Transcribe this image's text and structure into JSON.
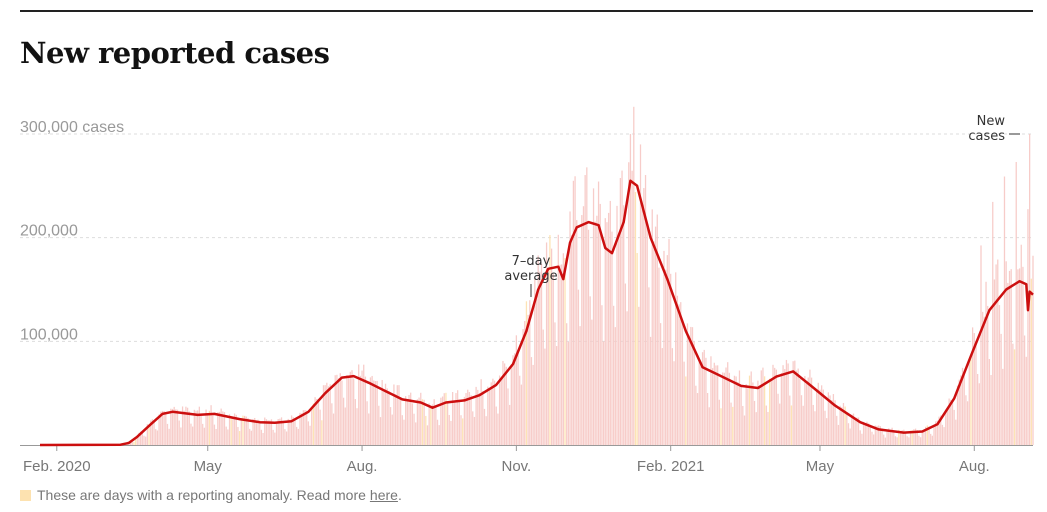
{
  "title": "New reported cases",
  "colors": {
    "bar": "#f7c9c6",
    "anomaly": "#fde2b0",
    "line": "#cc0f0f",
    "grid": "#dddddd",
    "axis_text": "#777777"
  },
  "chart_data": {
    "type": "bar",
    "title": "New reported cases",
    "xlabel": "",
    "ylabel": "",
    "ylim": [
      0,
      300000
    ],
    "x_range": [
      "2020-01-22",
      "2021-09-05"
    ],
    "y_ticks": [
      {
        "value": 300000,
        "label": "300,000 cases"
      },
      {
        "value": 200000,
        "label": "200,000"
      },
      {
        "value": 100000,
        "label": "100,000"
      }
    ],
    "x_ticks": [
      {
        "date": "2020-02-01",
        "label": "Feb. 2020"
      },
      {
        "date": "2020-05-01",
        "label": "May"
      },
      {
        "date": "2020-08-01",
        "label": "Aug."
      },
      {
        "date": "2020-11-01",
        "label": "Nov."
      },
      {
        "date": "2021-02-01",
        "label": "Feb. 2021"
      },
      {
        "date": "2021-05-01",
        "label": "May"
      },
      {
        "date": "2021-08-01",
        "label": "Aug."
      }
    ],
    "series": [
      {
        "name": "7-day average",
        "points": [
          [
            "2020-01-22",
            0
          ],
          [
            "2020-03-10",
            300
          ],
          [
            "2020-03-15",
            2000
          ],
          [
            "2020-03-20",
            8000
          ],
          [
            "2020-03-28",
            20000
          ],
          [
            "2020-04-04",
            30000
          ],
          [
            "2020-04-10",
            32000
          ],
          [
            "2020-04-25",
            29000
          ],
          [
            "2020-05-05",
            30000
          ],
          [
            "2020-05-20",
            25000
          ],
          [
            "2020-06-01",
            22000
          ],
          [
            "2020-06-10",
            21500
          ],
          [
            "2020-06-20",
            23000
          ],
          [
            "2020-06-30",
            32000
          ],
          [
            "2020-07-10",
            50000
          ],
          [
            "2020-07-20",
            65000
          ],
          [
            "2020-07-27",
            66500
          ],
          [
            "2020-08-05",
            60000
          ],
          [
            "2020-08-15",
            52000
          ],
          [
            "2020-08-25",
            44000
          ],
          [
            "2020-09-05",
            41000
          ],
          [
            "2020-09-12",
            36000
          ],
          [
            "2020-09-20",
            41000
          ],
          [
            "2020-10-01",
            43000
          ],
          [
            "2020-10-10",
            48000
          ],
          [
            "2020-10-20",
            58000
          ],
          [
            "2020-10-30",
            78000
          ],
          [
            "2020-11-07",
            110000
          ],
          [
            "2020-11-14",
            150000
          ],
          [
            "2020-11-20",
            170000
          ],
          [
            "2020-11-26",
            172000
          ],
          [
            "2020-11-29",
            160000
          ],
          [
            "2020-12-03",
            195000
          ],
          [
            "2020-12-07",
            210000
          ],
          [
            "2020-12-14",
            215000
          ],
          [
            "2020-12-20",
            212000
          ],
          [
            "2020-12-24",
            190000
          ],
          [
            "2020-12-28",
            185000
          ],
          [
            "2021-01-04",
            215000
          ],
          [
            "2021-01-08",
            255000
          ],
          [
            "2021-01-12",
            250000
          ],
          [
            "2021-01-20",
            200000
          ],
          [
            "2021-01-30",
            160000
          ],
          [
            "2021-02-10",
            110000
          ],
          [
            "2021-02-20",
            75000
          ],
          [
            "2021-03-01",
            68000
          ],
          [
            "2021-03-15",
            57000
          ],
          [
            "2021-03-25",
            55000
          ],
          [
            "2021-04-05",
            66000
          ],
          [
            "2021-04-15",
            71000
          ],
          [
            "2021-04-25",
            58000
          ],
          [
            "2021-05-10",
            38000
          ],
          [
            "2021-05-25",
            22000
          ],
          [
            "2021-06-05",
            15000
          ],
          [
            "2021-06-20",
            12000
          ],
          [
            "2021-07-01",
            13000
          ],
          [
            "2021-07-10",
            20000
          ],
          [
            "2021-07-20",
            45000
          ],
          [
            "2021-07-31",
            90000
          ],
          [
            "2021-08-10",
            130000
          ],
          [
            "2021-08-20",
            150000
          ],
          [
            "2021-08-28",
            158000
          ],
          [
            "2021-09-01",
            155000
          ],
          [
            "2021-09-02",
            130000
          ],
          [
            "2021-09-03",
            148000
          ],
          [
            "2021-09-05",
            145000
          ]
        ]
      }
    ],
    "annotations": [
      {
        "text_lines": [
          "7–day",
          "average"
        ],
        "points_to": "7-day average line"
      },
      {
        "text_lines": [
          "New",
          "cases"
        ],
        "points_to": "daily bars"
      }
    ],
    "footnote": {
      "text": "These are days with a reporting anomaly. Read more",
      "link": "here",
      "end": "."
    }
  }
}
